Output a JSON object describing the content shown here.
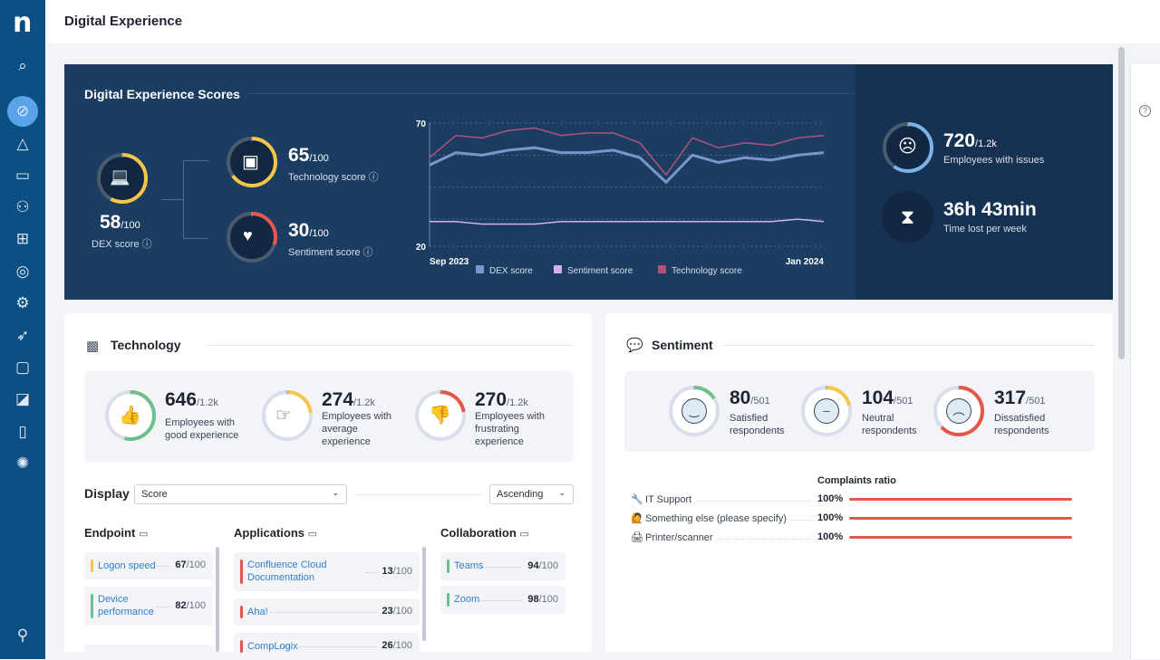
{
  "header": {
    "title": "Digital Experience"
  },
  "sidebar": {
    "logo": "n",
    "items": [
      "search-icon",
      "compass-icon",
      "bell-icon",
      "monitor-chart-icon",
      "user-presentation-icon",
      "dashboard-grid-icon",
      "fingerprint-search-icon",
      "robot-arm-icon",
      "rocket-icon",
      "chat-icon",
      "design-tools-icon",
      "book-icon",
      "gear-icon",
      "user-icon"
    ],
    "active": "compass-icon"
  },
  "scores": {
    "title": "Digital Experience Scores",
    "dex": {
      "value": "58",
      "den": "/100",
      "label": "DEX score",
      "fraction": 0.58,
      "color": "#f7c548"
    },
    "technology": {
      "value": "65",
      "den": "/100",
      "label": "Technology score",
      "fraction": 0.65,
      "color": "#f7c548"
    },
    "sentiment": {
      "value": "30",
      "den": "/100",
      "label": "Sentiment score",
      "fraction": 0.3,
      "color": "#e8554b"
    },
    "issues": {
      "value": "720",
      "den": "/1.2k",
      "label": "Employees with issues",
      "fraction": 0.6,
      "color": "#79b4e8"
    },
    "time_lost": {
      "value": "36h 43min",
      "label": "Time lost per week"
    }
  },
  "chart_data": {
    "type": "line",
    "x": [
      "Sep 2023",
      "",
      "",
      "",
      "",
      "",
      "",
      "",
      "",
      "",
      "",
      "",
      "",
      "",
      "",
      "Jan 2024"
    ],
    "x_tick_labels": [
      "Sep 2023",
      "Jan 2024"
    ],
    "ylim": [
      20,
      70
    ],
    "y_tick_labels": [
      "70",
      "20"
    ],
    "grid": true,
    "legend_position": "bottom",
    "series": [
      {
        "name": "DEX score",
        "color": "#7b97c9",
        "values": [
          53,
          58,
          57,
          59,
          60,
          58,
          58,
          59,
          56,
          46,
          57,
          54,
          56,
          55,
          57,
          58
        ]
      },
      {
        "name": "Sentiment score",
        "color": "#d4b0f0",
        "values": [
          30,
          30,
          29,
          29,
          29,
          30,
          30,
          30,
          30,
          30,
          30,
          30,
          30,
          30,
          31,
          30
        ]
      },
      {
        "name": "Technology score",
        "color": "#b3517a",
        "values": [
          56,
          65,
          64,
          67,
          68,
          65,
          66,
          66,
          62,
          49,
          64,
          60,
          62,
          61,
          64,
          65
        ]
      }
    ]
  },
  "technology": {
    "title": "Technology",
    "stats": [
      {
        "value": "646",
        "den": "/1.2k",
        "label": "Employees with good experience",
        "fraction": 0.54,
        "color": "#6cc08b",
        "icon": "thumbs-up-icon"
      },
      {
        "value": "274",
        "den": "/1.2k",
        "label": "Employees with average experience",
        "fraction": 0.23,
        "color": "#f7c548",
        "icon": "hand-pointing-icon"
      },
      {
        "value": "270",
        "den": "/1.2k",
        "label": "Employees with frustrating experience",
        "fraction": 0.225,
        "color": "#e8554b",
        "icon": "thumbs-down-icon"
      }
    ],
    "display_label": "Display",
    "display_value": "Score",
    "order_value": "Ascending",
    "columns": [
      {
        "title": "Endpoint",
        "items": [
          {
            "name": "Logon speed",
            "score": "67",
            "den": "/100",
            "color": "#f7c548"
          },
          {
            "name": "Device performance",
            "score": "82",
            "den": "/100",
            "color": "#6cc08b"
          }
        ]
      },
      {
        "title": "Applications",
        "items": [
          {
            "name": "Confluence Cloud Documentation",
            "score": "13",
            "den": "/100",
            "color": "#e8554b"
          },
          {
            "name": "Aha!",
            "score": "23",
            "den": "/100",
            "color": "#e8554b"
          },
          {
            "name": "CompLogix",
            "score": "26",
            "den": "/100",
            "color": "#e8554b"
          }
        ]
      },
      {
        "title": "Collaboration",
        "items": [
          {
            "name": "Teams",
            "score": "94",
            "den": "/100",
            "color": "#6cc08b"
          },
          {
            "name": "Zoom",
            "score": "98",
            "den": "/100",
            "color": "#6cc08b"
          }
        ]
      }
    ]
  },
  "sentiment": {
    "title": "Sentiment",
    "stats": [
      {
        "value": "80",
        "den": "/501",
        "label": "Satisfied respondents",
        "fraction": 0.16,
        "color": "#6cc08b",
        "icon": "smile-face-icon"
      },
      {
        "value": "104",
        "den": "/501",
        "label": "Neutral respondents",
        "fraction": 0.21,
        "color": "#f7c548",
        "icon": "neutral-face-icon"
      },
      {
        "value": "317",
        "den": "/501",
        "label": "Dissatisfied respondents",
        "fraction": 0.63,
        "color": "#e8554b",
        "icon": "sad-face-icon"
      }
    ],
    "complaints_title": "Complaints ratio",
    "complaints": [
      {
        "emoji": "🔧",
        "label": "IT Support",
        "value": "100%",
        "fraction": 1.0
      },
      {
        "emoji": "🙋",
        "label": "Something else (please specify)",
        "value": "100%",
        "fraction": 1.0
      },
      {
        "emoji": "🖨",
        "label": "Printer/scanner",
        "value": "100%",
        "fraction": 1.0
      }
    ],
    "bar_color": "#e8554b"
  }
}
